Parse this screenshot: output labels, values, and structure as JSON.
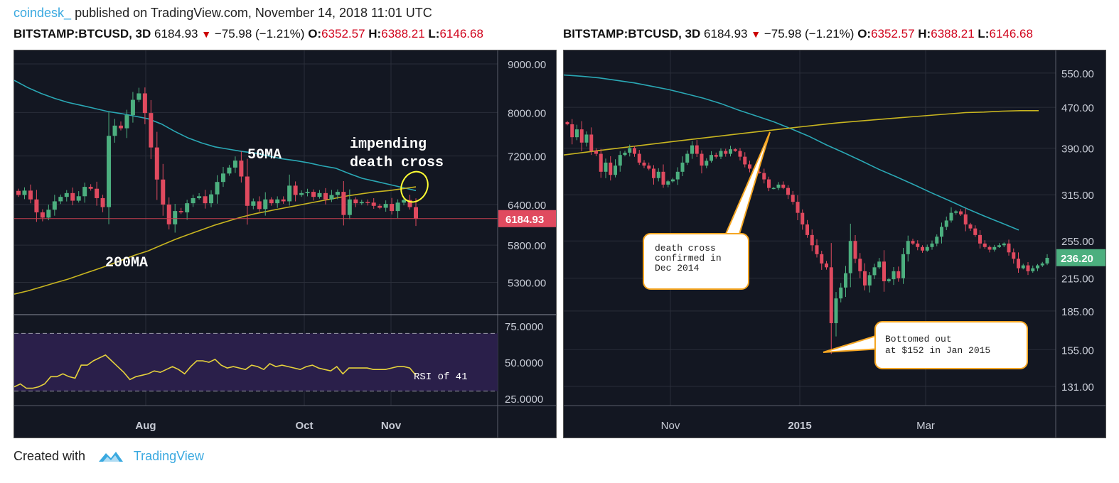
{
  "header": {
    "author": "coindesk_",
    "published": "published on TradingView.com, November 14, 2018 11:01 UTC"
  },
  "chart_header": {
    "symbol": "BITSTAMP:BTCUSD, 3D",
    "last": "6184.93",
    "change": "−75.98 (−1.21%)",
    "o_label": "O:",
    "o": "6352.57",
    "h_label": "H:",
    "h": "6388.21",
    "l_label": "L:",
    "l": "6146.68"
  },
  "footer": {
    "created_with": "Created with",
    "brand": "TradingView"
  },
  "colors": {
    "up": "#4caf7f",
    "down": "#e04a5f",
    "ma50": "#2aa8b5",
    "ma200": "#c8b520",
    "bg": "#131722",
    "rsi_fill": "#2a1f4a",
    "callout": "#f5a623"
  },
  "chart_data": [
    {
      "type": "candlestick",
      "title": "BITSTAMP:BTCUSD, 3D",
      "x_tick_labels": [
        "Aug",
        "Oct",
        "Nov"
      ],
      "y_tick_labels": [
        "9000.00",
        "8000.00",
        "7200.00",
        "6400.00",
        "5800.00",
        "5300.00"
      ],
      "ylim": [
        4900,
        9300
      ],
      "y_scale": "log",
      "last_price_label": "6184.93",
      "closes": [
        6550,
        6620,
        6480,
        6280,
        6200,
        6320,
        6450,
        6520,
        6580,
        6460,
        6530,
        6680,
        6650,
        6500,
        6360,
        7560,
        7750,
        7700,
        7950,
        8250,
        8380,
        7990,
        7350,
        6800,
        6400,
        6100,
        6300,
        6280,
        6420,
        6500,
        6530,
        6420,
        6560,
        6760,
        6900,
        7000,
        7120,
        6850,
        6380,
        6450,
        6330,
        6480,
        6420,
        6480,
        6450,
        6700,
        6550,
        6580,
        6600,
        6520,
        6580,
        6480,
        6550,
        6600,
        6240,
        6480,
        6420,
        6440,
        6430,
        6380,
        6350,
        6410,
        6300,
        6430,
        6470,
        6360,
        6185
      ],
      "ma50": {
        "name": "50MA",
        "values": [
          8650,
          8500,
          8380,
          8280,
          8200,
          8140,
          8080,
          8020,
          7980,
          7930,
          7880,
          7780,
          7640,
          7520,
          7430,
          7360,
          7320,
          7280,
          7250,
          7200,
          7150,
          7120,
          7080,
          7030,
          6990,
          6900,
          6820,
          6770,
          6720,
          6670,
          6620
        ]
      },
      "ma200": {
        "name": "200MA",
        "values": [
          5150,
          5190,
          5240,
          5290,
          5340,
          5400,
          5460,
          5520,
          5590,
          5660,
          5720,
          5800,
          5880,
          5950,
          6020,
          6090,
          6150,
          6210,
          6260,
          6300,
          6340,
          6380,
          6420,
          6460,
          6500,
          6540,
          6570,
          6600,
          6620,
          6650,
          6680
        ]
      },
      "annotations": [
        "50MA",
        "200MA",
        "impending",
        "death cross"
      ],
      "rsi": {
        "y_tick_labels": [
          "75.0000",
          "50.0000",
          "25.0000"
        ],
        "ylim": [
          20,
          80
        ],
        "bands": [
          70,
          30
        ],
        "values": [
          33,
          35,
          32,
          32,
          33,
          35,
          40,
          40,
          42,
          40,
          39,
          48,
          48,
          51,
          53,
          55,
          51,
          47,
          43,
          38,
          40,
          41,
          42,
          44,
          43,
          45,
          47,
          45,
          42,
          47,
          51,
          51,
          50,
          52,
          48,
          46,
          47,
          46,
          45,
          48,
          47,
          45,
          49,
          47,
          48,
          47,
          46,
          45,
          47,
          48,
          46,
          45,
          44,
          47,
          42,
          46,
          46,
          46,
          46,
          45,
          45,
          45,
          46,
          47,
          47,
          46,
          41
        ],
        "label": "RSI of 41"
      }
    },
    {
      "type": "candlestick",
      "title": "BITSTAMP:BTCUSD, 3D",
      "x_tick_labels": [
        "Nov",
        "2015",
        "Mar"
      ],
      "y_tick_labels": [
        "550.00",
        "470.00",
        "390.00",
        "315.00",
        "255.00",
        "215.00",
        "185.00",
        "155.00",
        "131.00"
      ],
      "ylim": [
        120,
        610
      ],
      "y_scale": "log",
      "last_price_label": "236.20",
      "closes": [
        435,
        410,
        425,
        400,
        415,
        385,
        380,
        350,
        365,
        345,
        360,
        378,
        382,
        390,
        380,
        365,
        360,
        355,
        340,
        350,
        330,
        335,
        338,
        350,
        365,
        380,
        395,
        380,
        360,
        368,
        378,
        375,
        385,
        380,
        388,
        385,
        375,
        362,
        355,
        350,
        348,
        338,
        325,
        325,
        330,
        325,
        315,
        305,
        290,
        275,
        262,
        250,
        240,
        230,
        226,
        175,
        196,
        206,
        220,
        255,
        235,
        222,
        208,
        218,
        226,
        232,
        212,
        214,
        222,
        215,
        240,
        255,
        252,
        248,
        244,
        248,
        252,
        260,
        272,
        280,
        290,
        292,
        288,
        275,
        270,
        262,
        252,
        248,
        245,
        248,
        250,
        252,
        242,
        235,
        225,
        228,
        222,
        225,
        228,
        230,
        236
      ],
      "ma50": {
        "values": [
          545,
          542,
          538,
          532,
          526,
          518,
          510,
          500,
          490,
          478,
          464,
          452,
          440,
          426,
          412,
          396,
          382,
          368,
          354,
          342,
          330,
          318,
          307,
          296,
          286,
          277,
          268
        ]
      },
      "ma200": {
        "values": [
          378,
          382,
          386,
          390,
          394,
          398,
          402,
          406,
          410,
          414,
          418,
          422,
          426,
          430,
          434,
          438,
          441,
          444,
          447,
          450,
          453,
          456,
          459,
          460,
          462,
          463,
          463
        ]
      },
      "annotations": [
        {
          "text": [
            "death cross",
            "confirmed in",
            "Dec 2014"
          ]
        },
        {
          "text": [
            "Bottomed out",
            "at $152 in Jan 2015"
          ]
        }
      ]
    }
  ]
}
